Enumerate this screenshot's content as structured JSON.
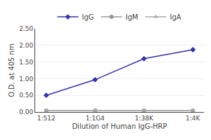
{
  "chart_data": {
    "type": "line",
    "xlabel": "Dilution of Human IgG-HRP",
    "ylabel": "O.D. at 405 nm",
    "categories": [
      "1:512",
      "1:1G4",
      "1:38K",
      "1:4K"
    ],
    "series": [
      {
        "name": "IgG",
        "color": "#3333aa",
        "marker": "diamond",
        "values": [
          0.5,
          0.97,
          1.6,
          1.87
        ]
      },
      {
        "name": "IgM",
        "color": "#999999",
        "marker": "circle",
        "values": [
          0.04,
          0.04,
          0.04,
          0.04
        ]
      },
      {
        "name": "IgA",
        "color": "#aaaaaa",
        "marker": "triangle-up",
        "values": [
          0.04,
          0.04,
          0.04,
          0.04
        ]
      }
    ],
    "ylim": [
      0.0,
      2.5
    ],
    "yticks": [
      {
        "value": 0.0,
        "label": "0.00"
      },
      {
        "value": 0.5,
        "label": "0.50"
      },
      {
        "value": 1.0,
        "label": "1.00"
      },
      {
        "value": 1.5,
        "label": "1.50"
      },
      {
        "value": 2.0,
        "label": "2.00"
      },
      {
        "value": 2.5,
        "label": "2.50"
      }
    ],
    "grid": true,
    "legend": "top"
  }
}
